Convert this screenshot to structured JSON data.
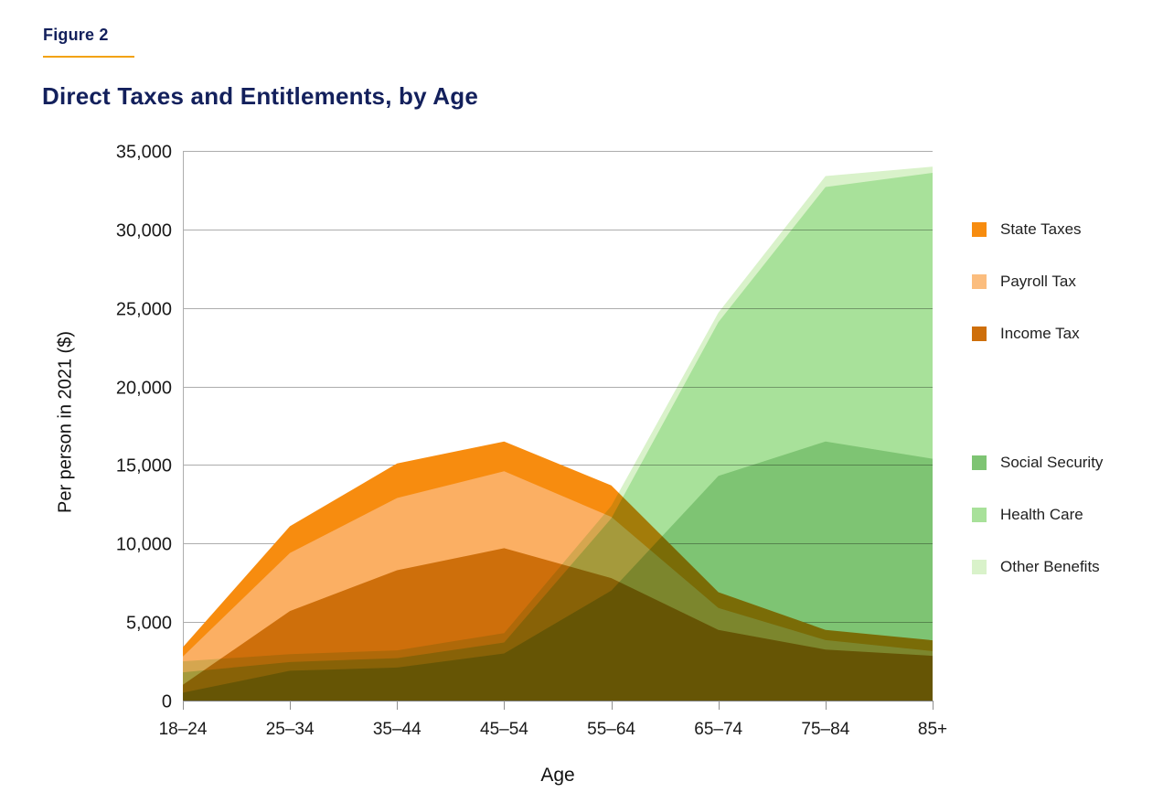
{
  "figure_label": "Figure 2",
  "title": "Direct Taxes and Entitlements, by Age",
  "axes": {
    "y_label": "Per person in 2021 ($)",
    "x_label": "Age"
  },
  "legend": {
    "taxes": [
      {
        "label": "State Taxes",
        "color": "#f78c0f"
      },
      {
        "label": "Payroll Tax",
        "color": "#fbbd7e"
      },
      {
        "label": "Income Tax",
        "color": "#ce6f0b"
      }
    ],
    "benefits": [
      {
        "label": "Social Security",
        "color": "#7ec473"
      },
      {
        "label": "Health Care",
        "color": "#a8e19a"
      },
      {
        "label": "Other Benefits",
        "color": "#d9f2ca"
      }
    ]
  },
  "colors": {
    "accent_rule": "#f2a20d",
    "title_navy": "#13205c",
    "gridline": "#adadad",
    "baseline": "#7f7f7f",
    "tick": "#8f8f8f"
  },
  "chart_data": {
    "type": "area",
    "subtype": "two stacked area groups; benefits stack overlaps tax stack with multiply blending",
    "title": "Direct Taxes and Entitlements, by Age",
    "xlabel": "Age",
    "ylabel": "Per person in 2021 ($)",
    "ylim": [
      0,
      35000
    ],
    "yticks": [
      0,
      5000,
      10000,
      15000,
      20000,
      25000,
      30000,
      35000
    ],
    "grid": true,
    "legend_position": "right",
    "categories": [
      "18–24",
      "25–34",
      "35–44",
      "45–54",
      "55–64",
      "65–74",
      "75–84",
      "85+"
    ],
    "series": [
      {
        "name": "Income Tax",
        "group": "taxes",
        "color": "#ce6f0b",
        "values": [
          1000,
          5700,
          8300,
          9700,
          7800,
          4500,
          3250,
          2850
        ]
      },
      {
        "name": "Payroll Tax",
        "group": "taxes",
        "color": "#fbaf63",
        "values": [
          1800,
          3700,
          4600,
          4900,
          3900,
          1400,
          600,
          300
        ]
      },
      {
        "name": "State Taxes",
        "group": "taxes",
        "color": "#f78c0f",
        "values": [
          600,
          1700,
          2200,
          1900,
          2000,
          1000,
          650,
          690
        ]
      },
      {
        "name": "Social Security",
        "group": "benefits",
        "color": "#7ec473",
        "values": [
          500,
          1900,
          2100,
          3000,
          7000,
          14300,
          16500,
          15400
        ]
      },
      {
        "name": "Health Care",
        "group": "benefits",
        "color": "#a8e19a",
        "values": [
          1300,
          550,
          600,
          700,
          4600,
          9800,
          16200,
          18200
        ]
      },
      {
        "name": "Other Benefits",
        "group": "benefits",
        "color": "#d9f2ca",
        "values": [
          700,
          500,
          500,
          600,
          800,
          600,
          700,
          400
        ]
      }
    ]
  }
}
